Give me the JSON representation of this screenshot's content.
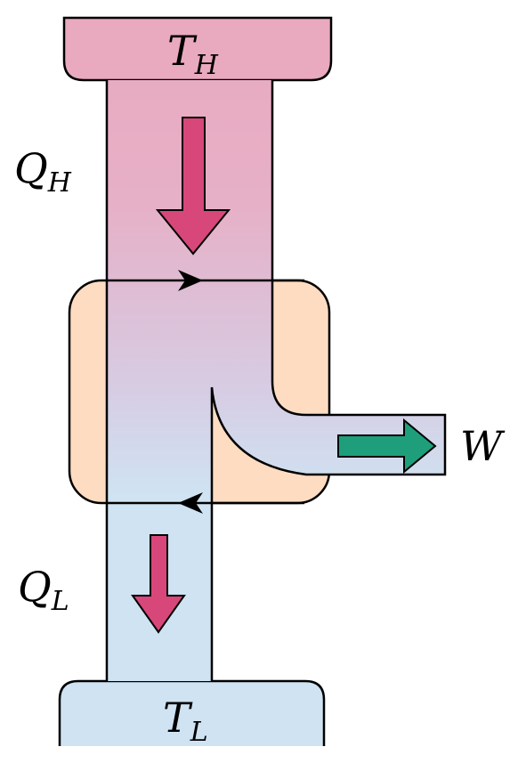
{
  "labels": {
    "hot_reservoir": {
      "symbol": "T",
      "subscript": "H"
    },
    "cold_reservoir": {
      "symbol": "T",
      "subscript": "L"
    },
    "heat_in": {
      "symbol": "Q",
      "subscript": "H"
    },
    "heat_out": {
      "symbol": "Q",
      "subscript": "L"
    },
    "work": {
      "symbol": "W",
      "subscript": ""
    }
  },
  "colors": {
    "hot": "#e9a9bf",
    "hot_light": "#dcc3d7",
    "cold": "#cfe3f2",
    "engine": "#fddcc2",
    "heat_arrow": "#d8477a",
    "work_arrow": "#1f9e7c",
    "outline": "#000000"
  }
}
